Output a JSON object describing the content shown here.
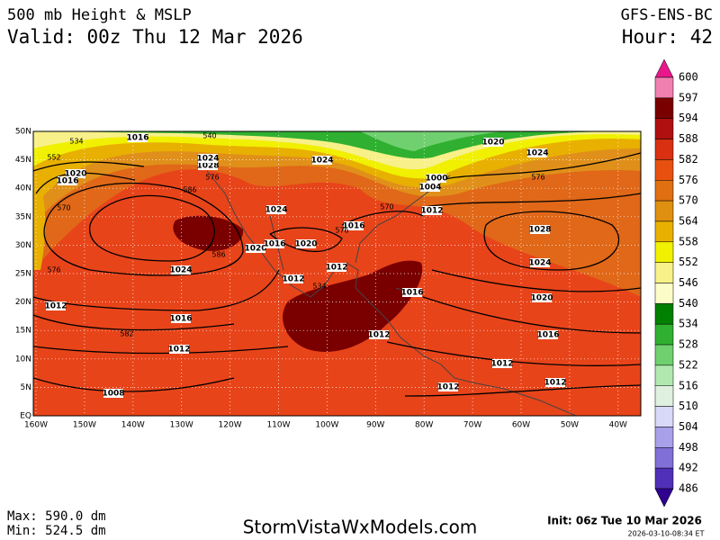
{
  "header": {
    "title": "500 mb Height & MSLP",
    "valid": "Valid: 00z Thu 12 Mar 2026",
    "model": "GFS-ENS-BC",
    "hour": "Hour: 42"
  },
  "map": {
    "lat_labels": [
      "50N",
      "45N",
      "40N",
      "35N",
      "30N",
      "25N",
      "20N",
      "15N",
      "10N",
      "5N",
      "EQ"
    ],
    "lon_labels": [
      "160W",
      "150W",
      "140W",
      "130W",
      "120W",
      "110W",
      "100W",
      "90W",
      "80W",
      "70W",
      "60W",
      "50W",
      "40W"
    ],
    "isobar_labels": [
      "1016",
      "1020",
      "1016",
      "1028",
      "1024",
      "1024",
      "1024",
      "1020",
      "1016",
      "1020",
      "1016",
      "1012",
      "1012",
      "1024",
      "1016",
      "1012",
      "1012",
      "1008",
      "1000",
      "1004",
      "1012",
      "1028",
      "1024",
      "1020",
      "1016",
      "1016",
      "1012",
      "1012",
      "1012",
      "1012",
      "1020",
      "1024"
    ],
    "height_labels": [
      "534",
      "540",
      "552",
      "570",
      "576",
      "586",
      "586",
      "582",
      "576",
      "570",
      "576",
      "576",
      "534"
    ]
  },
  "colorbar": {
    "levels": [
      600,
      597,
      594,
      588,
      582,
      576,
      570,
      564,
      558,
      552,
      546,
      540,
      534,
      528,
      522,
      516,
      510,
      504,
      498,
      492,
      486
    ],
    "colors": [
      "#e8188c",
      "#f080b0",
      "#7a0000",
      "#b01010",
      "#d83010",
      "#e85010",
      "#e07010",
      "#e09010",
      "#e8b000",
      "#f0f000",
      "#f8f088",
      "#fcfcc8",
      "#008000",
      "#30b030",
      "#70d070",
      "#b0e8b0",
      "#e0f0e0",
      "#d8d8f8",
      "#a8a0e8",
      "#8070d8",
      "#5030b8",
      "#300090"
    ]
  },
  "footer": {
    "max": "Max: 590.0 dm",
    "min": "Min: 524.5 dm",
    "site": "StormVistaWxModels.com",
    "init": "Init: 06z Tue 10 Mar 2026",
    "stamp": "2026-03-10-08:34 ET"
  }
}
